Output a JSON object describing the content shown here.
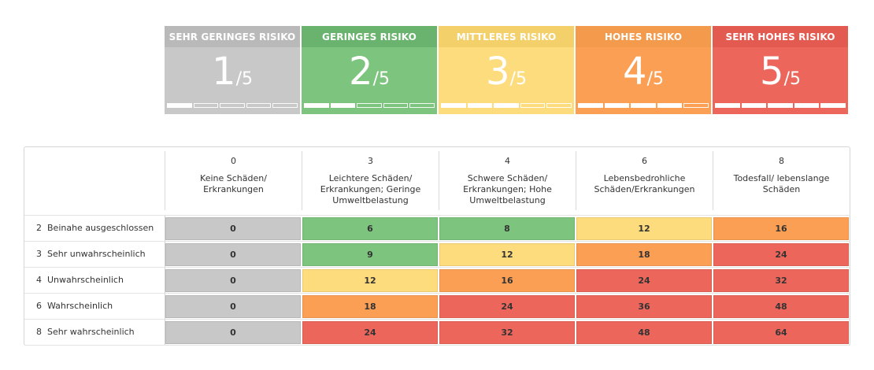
{
  "levels": [
    {
      "label": "SEHR GERINGES RISIKO",
      "score": "1",
      "of": "/5",
      "filled": 1,
      "head_color": "#b9b9b9",
      "body_color": "#c8c8c8"
    },
    {
      "label": "GERINGES RISIKO",
      "score": "2",
      "of": "/5",
      "filled": 2,
      "head_color": "#6ab36e",
      "body_color": "#7dc47e"
    },
    {
      "label": "MITTLERES RISIKO",
      "score": "3",
      "of": "/5",
      "filled": 3,
      "head_color": "#f4d06a",
      "body_color": "#fddc7d"
    },
    {
      "label": "HOHES RISIKO",
      "score": "4",
      "of": "/5",
      "filled": 4,
      "head_color": "#f39a4c",
      "body_color": "#fb9f55"
    },
    {
      "label": "SEHR HOHES RISIKO",
      "score": "5",
      "of": "/5",
      "filled": 5,
      "head_color": "#e35a50",
      "body_color": "#ec665b"
    }
  ],
  "matrix": {
    "columns": [
      {
        "value": "0",
        "label": "Keine Schäden/ Erkrankungen"
      },
      {
        "value": "3",
        "label": "Leichtere Schäden/ Erkrankungen; Geringe Umweltbelastung"
      },
      {
        "value": "4",
        "label": "Schwere Schäden/ Erkrankungen; Hohe Umweltbelastung"
      },
      {
        "value": "6",
        "label": "Lebensbedrohliche Schäden/Erkrankungen"
      },
      {
        "value": "8",
        "label": "Todesfall/ lebenslange Schäden"
      }
    ],
    "rows": [
      {
        "num": "2",
        "label": "Beinahe ausgeschlossen",
        "cells": [
          {
            "v": "0",
            "lvl": 1
          },
          {
            "v": "6",
            "lvl": 2
          },
          {
            "v": "8",
            "lvl": 2
          },
          {
            "v": "12",
            "lvl": 3
          },
          {
            "v": "16",
            "lvl": 4
          }
        ]
      },
      {
        "num": "3",
        "label": "Sehr unwahrscheinlich",
        "cells": [
          {
            "v": "0",
            "lvl": 1
          },
          {
            "v": "9",
            "lvl": 2
          },
          {
            "v": "12",
            "lvl": 3
          },
          {
            "v": "18",
            "lvl": 4
          },
          {
            "v": "24",
            "lvl": 5
          }
        ]
      },
      {
        "num": "4",
        "label": "Unwahrscheinlich",
        "cells": [
          {
            "v": "0",
            "lvl": 1
          },
          {
            "v": "12",
            "lvl": 3
          },
          {
            "v": "16",
            "lvl": 4
          },
          {
            "v": "24",
            "lvl": 5
          },
          {
            "v": "32",
            "lvl": 5
          }
        ]
      },
      {
        "num": "6",
        "label": "Wahrscheinlich",
        "cells": [
          {
            "v": "0",
            "lvl": 1
          },
          {
            "v": "18",
            "lvl": 4
          },
          {
            "v": "24",
            "lvl": 5
          },
          {
            "v": "36",
            "lvl": 5
          },
          {
            "v": "48",
            "lvl": 5
          }
        ]
      },
      {
        "num": "8",
        "label": "Sehr wahrscheinlich",
        "cells": [
          {
            "v": "0",
            "lvl": 1
          },
          {
            "v": "24",
            "lvl": 5
          },
          {
            "v": "32",
            "lvl": 5
          },
          {
            "v": "48",
            "lvl": 5
          },
          {
            "v": "64",
            "lvl": 5
          }
        ]
      }
    ]
  }
}
